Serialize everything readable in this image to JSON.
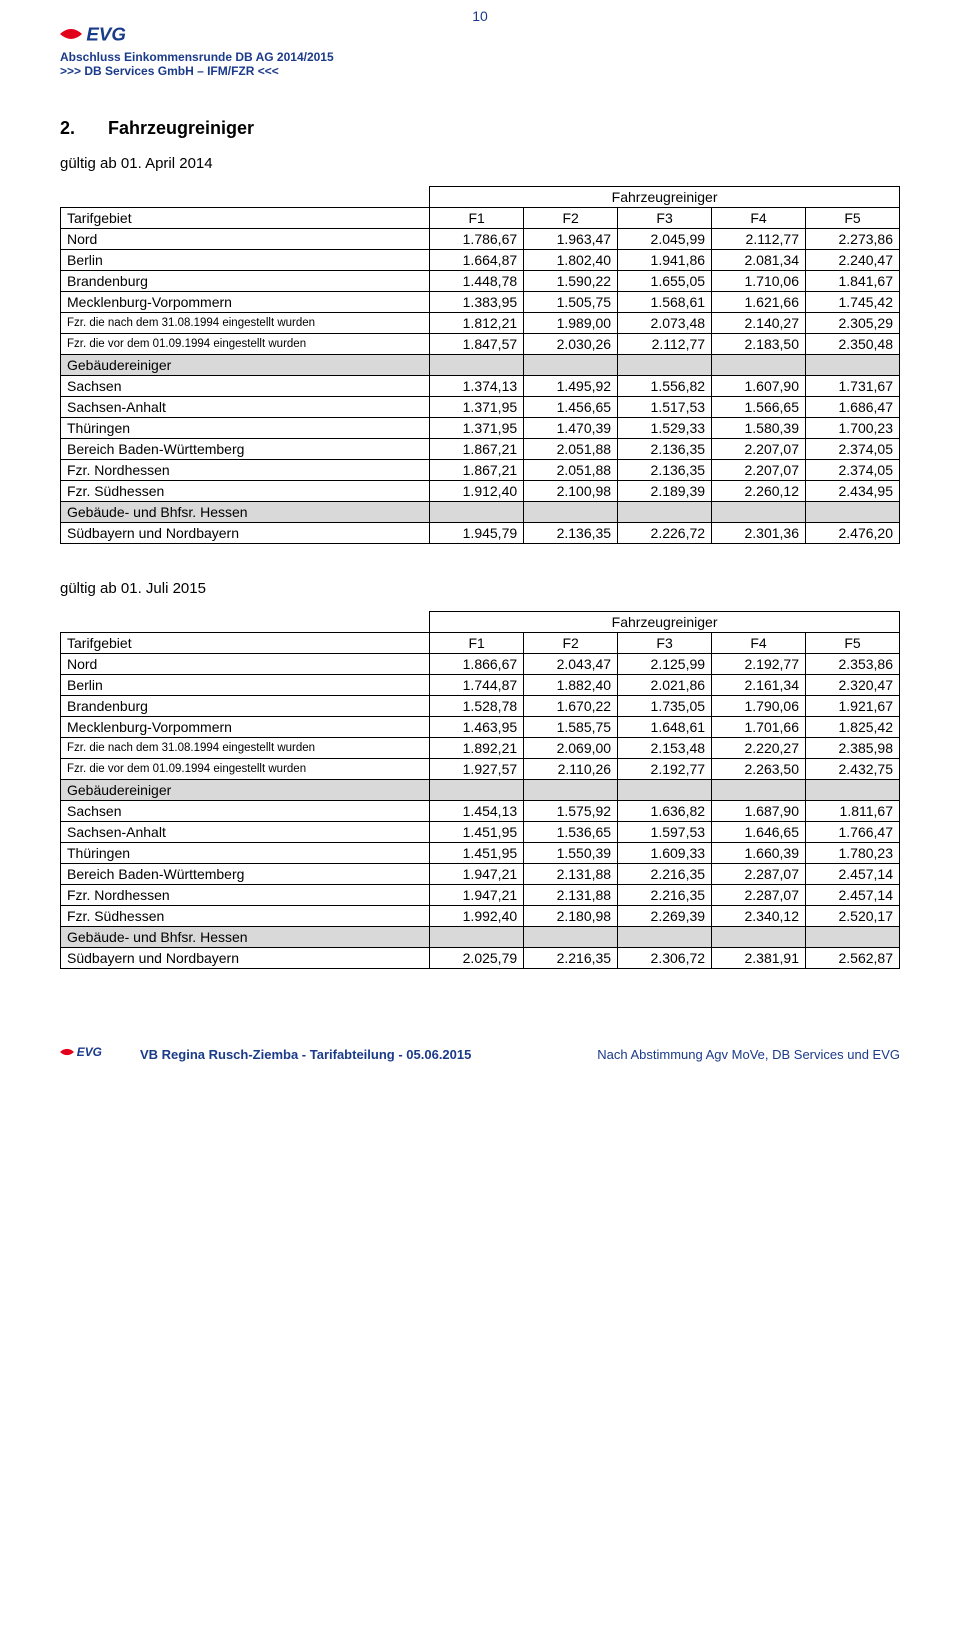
{
  "page_number": "10",
  "header": {
    "line1": "Abschluss Einkommensrunde DB AG 2014/2015",
    "line2": ">>>  DB Services GmbH – IFM/FZR  <<<"
  },
  "section": {
    "number": "2.",
    "name": "Fahrzeugreiniger"
  },
  "valid_from_1": "gültig ab 01. April 2014",
  "valid_from_2": "gültig ab 01. Juli 2015",
  "table_group_header": "Fahrzeugreiniger",
  "columns": [
    "Tarifgebiet",
    "F1",
    "F2",
    "F3",
    "F4",
    "F5"
  ],
  "colors": {
    "brand_blue": "#1a3a8a",
    "brand_red": "#e2001a",
    "shaded_row": "#d9d9d9",
    "border": "#000000",
    "background": "#ffffff"
  },
  "table1": [
    {
      "label": "Nord",
      "vals": [
        "1.786,67",
        "1.963,47",
        "2.045,99",
        "2.112,77",
        "2.273,86"
      ]
    },
    {
      "label": "Berlin",
      "vals": [
        "1.664,87",
        "1.802,40",
        "1.941,86",
        "2.081,34",
        "2.240,47"
      ]
    },
    {
      "label": "Brandenburg",
      "vals": [
        "1.448,78",
        "1.590,22",
        "1.655,05",
        "1.710,06",
        "1.841,67"
      ]
    },
    {
      "label": "Mecklenburg-Vorpommern",
      "vals": [
        "1.383,95",
        "1.505,75",
        "1.568,61",
        "1.621,66",
        "1.745,42"
      ]
    },
    {
      "label": "Fzr. die nach dem 31.08.1994 eingestellt wurden",
      "vals": [
        "1.812,21",
        "1.989,00",
        "2.073,48",
        "2.140,27",
        "2.305,29"
      ],
      "small": true
    },
    {
      "label": "Fzr. die vor dem 01.09.1994 eingestellt wurden",
      "vals": [
        "1.847,57",
        "2.030,26",
        "2.112,77",
        "2.183,50",
        "2.350,48"
      ],
      "small": true
    },
    {
      "label": "Gebäudereiniger",
      "vals": [
        "",
        "",
        "",
        "",
        ""
      ],
      "shaded": true
    },
    {
      "label": "Sachsen",
      "vals": [
        "1.374,13",
        "1.495,92",
        "1.556,82",
        "1.607,90",
        "1.731,67"
      ]
    },
    {
      "label": "Sachsen-Anhalt",
      "vals": [
        "1.371,95",
        "1.456,65",
        "1.517,53",
        "1.566,65",
        "1.686,47"
      ]
    },
    {
      "label": "Thüringen",
      "vals": [
        "1.371,95",
        "1.470,39",
        "1.529,33",
        "1.580,39",
        "1.700,23"
      ]
    },
    {
      "label": "Bereich Baden-Württemberg",
      "vals": [
        "1.867,21",
        "2.051,88",
        "2.136,35",
        "2.207,07",
        "2.374,05"
      ]
    },
    {
      "label": "Fzr. Nordhessen",
      "vals": [
        "1.867,21",
        "2.051,88",
        "2.136,35",
        "2.207,07",
        "2.374,05"
      ]
    },
    {
      "label": "Fzr. Südhessen",
      "vals": [
        "1.912,40",
        "2.100,98",
        "2.189,39",
        "2.260,12",
        "2.434,95"
      ]
    },
    {
      "label": "Gebäude- und Bhfsr. Hessen",
      "vals": [
        "",
        "",
        "",
        "",
        ""
      ],
      "shaded": true
    },
    {
      "label": "Südbayern und Nordbayern",
      "vals": [
        "1.945,79",
        "2.136,35",
        "2.226,72",
        "2.301,36",
        "2.476,20"
      ]
    }
  ],
  "table2": [
    {
      "label": "Nord",
      "vals": [
        "1.866,67",
        "2.043,47",
        "2.125,99",
        "2.192,77",
        "2.353,86"
      ]
    },
    {
      "label": "Berlin",
      "vals": [
        "1.744,87",
        "1.882,40",
        "2.021,86",
        "2.161,34",
        "2.320,47"
      ]
    },
    {
      "label": "Brandenburg",
      "vals": [
        "1.528,78",
        "1.670,22",
        "1.735,05",
        "1.790,06",
        "1.921,67"
      ]
    },
    {
      "label": "Mecklenburg-Vorpommern",
      "vals": [
        "1.463,95",
        "1.585,75",
        "1.648,61",
        "1.701,66",
        "1.825,42"
      ]
    },
    {
      "label": "Fzr. die nach dem 31.08.1994 eingestellt wurden",
      "vals": [
        "1.892,21",
        "2.069,00",
        "2.153,48",
        "2.220,27",
        "2.385,98"
      ],
      "small": true
    },
    {
      "label": "Fzr. die vor dem 01.09.1994 eingestellt wurden",
      "vals": [
        "1.927,57",
        "2.110,26",
        "2.192,77",
        "2.263,50",
        "2.432,75"
      ],
      "small": true
    },
    {
      "label": "Gebäudereiniger",
      "vals": [
        "",
        "",
        "",
        "",
        ""
      ],
      "shaded": true
    },
    {
      "label": "Sachsen",
      "vals": [
        "1.454,13",
        "1.575,92",
        "1.636,82",
        "1.687,90",
        "1.811,67"
      ]
    },
    {
      "label": "Sachsen-Anhalt",
      "vals": [
        "1.451,95",
        "1.536,65",
        "1.597,53",
        "1.646,65",
        "1.766,47"
      ]
    },
    {
      "label": "Thüringen",
      "vals": [
        "1.451,95",
        "1.550,39",
        "1.609,33",
        "1.660,39",
        "1.780,23"
      ]
    },
    {
      "label": "Bereich Baden-Württemberg",
      "vals": [
        "1.947,21",
        "2.131,88",
        "2.216,35",
        "2.287,07",
        "2.457,14"
      ]
    },
    {
      "label": "Fzr. Nordhessen",
      "vals": [
        "1.947,21",
        "2.131,88",
        "2.216,35",
        "2.287,07",
        "2.457,14"
      ]
    },
    {
      "label": "Fzr. Südhessen",
      "vals": [
        "1.992,40",
        "2.180,98",
        "2.269,39",
        "2.340,12",
        "2.520,17"
      ]
    },
    {
      "label": "Gebäude- und Bhfsr. Hessen",
      "vals": [
        "",
        "",
        "",
        "",
        ""
      ],
      "shaded": true
    },
    {
      "label": "Südbayern und Nordbayern",
      "vals": [
        "2.025,79",
        "2.216,35",
        "2.306,72",
        "2.381,91",
        "2.562,87"
      ]
    }
  ],
  "footer": {
    "left": "VB Regina Rusch-Ziemba - Tarifabteilung -  05.06.2015",
    "right": "Nach Abstimmung Agv MoVe, DB Services und EVG"
  }
}
